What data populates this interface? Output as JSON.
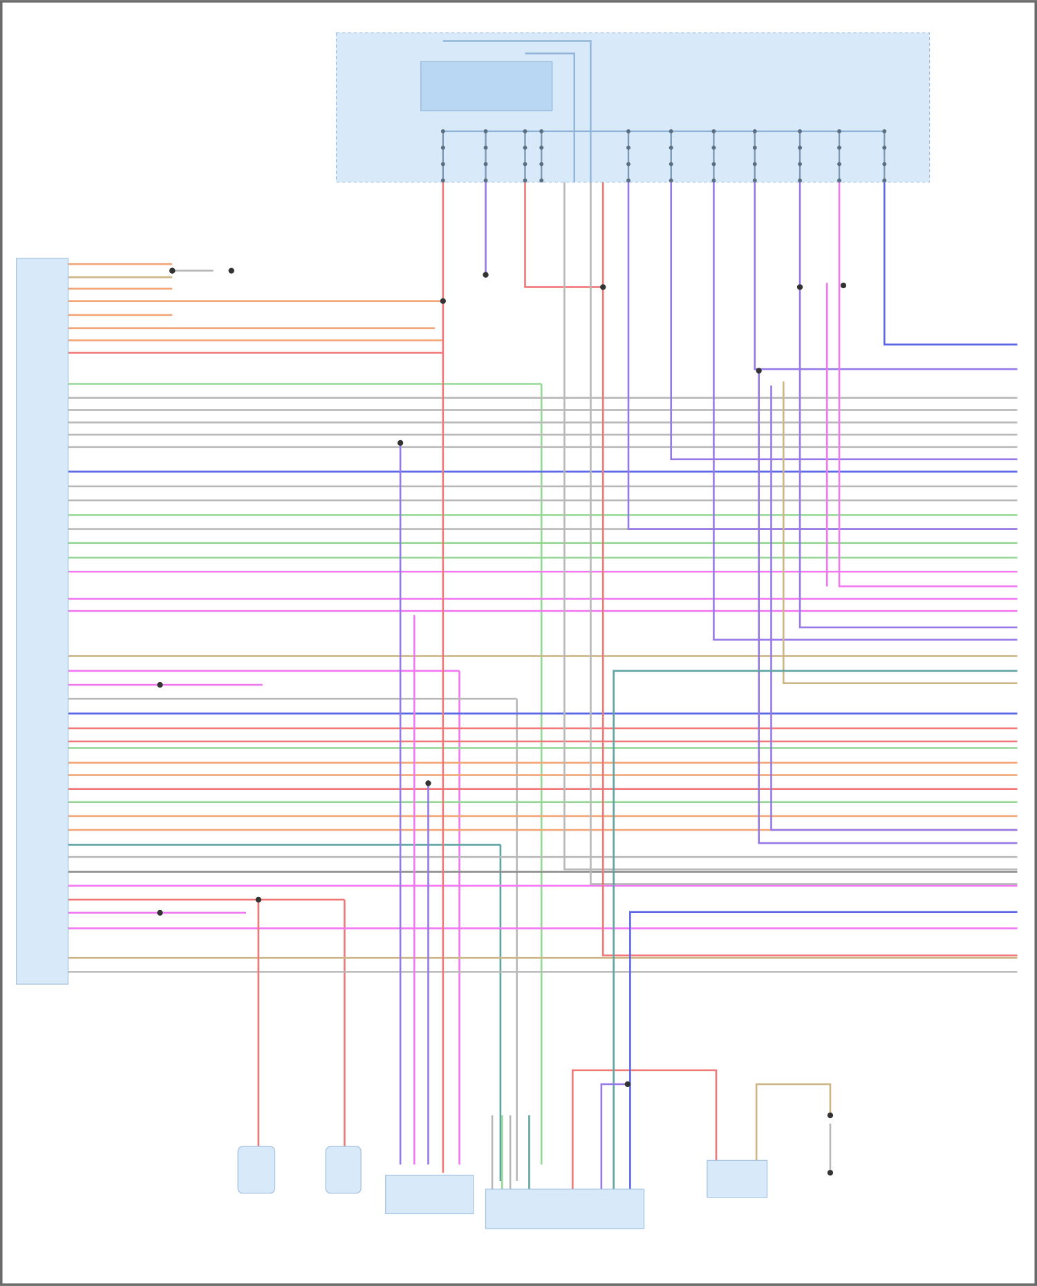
{
  "diagram": {
    "title": "",
    "wire_colors": {
      "orange": "#f2a678",
      "tan": "#cdb684",
      "green": "#95d795",
      "gray": "#b8b8b8",
      "purple": "#9678e6",
      "blue": "#5a66e6",
      "pink": "#f277f2",
      "red": "#f07878",
      "teal": "#5fa3a3",
      "darkgray": "#8c8c8c"
    },
    "module_fill": "#d8eaf9",
    "module_border": "#9fbfe0",
    "relay_fill": "#b9d6f3",
    "frame_color": "#6a6a6a",
    "horizontal_wires": [
      "orange",
      "tan",
      "orange",
      "orange",
      "orange",
      "orange",
      "orange",
      "red",
      "green",
      "gray",
      "gray",
      "gray",
      "gray",
      "gray",
      "blue",
      "gray",
      "gray",
      "green",
      "gray",
      "green",
      "green",
      "pink",
      "pink",
      "pink",
      "tan",
      "pink",
      "pink",
      "gray",
      "blue",
      "red",
      "red",
      "green",
      "orange",
      "orange",
      "red",
      "green",
      "orange",
      "orange",
      "teal",
      "gray",
      "darkgray",
      "pink",
      "red",
      "pink",
      "pink",
      "tan",
      "gray"
    ],
    "vertical_wires": [
      "red",
      "purple",
      "red",
      "gray",
      "gray",
      "red",
      "purple",
      "purple",
      "purple",
      "purple",
      "purple",
      "pink",
      "blue"
    ],
    "bottom_wires": [
      "purple",
      "pink",
      "purple",
      "tan",
      "pink",
      "gray",
      "green",
      "gray",
      "teal",
      "green",
      "red",
      "blue",
      "purple",
      "gray"
    ]
  }
}
